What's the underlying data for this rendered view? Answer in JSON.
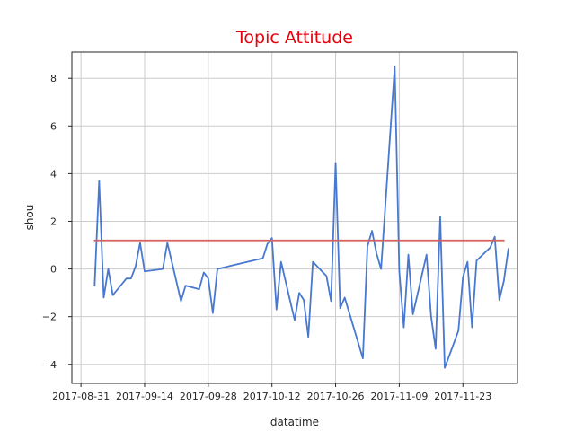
{
  "chart_data": {
    "type": "line",
    "title": "Topic Attitude",
    "title_color": "#e8000b",
    "xlabel": "datatime",
    "ylabel": "shou",
    "x_type": "date",
    "xlim": [
      "2017-08-29",
      "2017-12-05"
    ],
    "ylim": [
      -4.8,
      9.1
    ],
    "x_ticks": [
      "2017-08-31",
      "2017-09-14",
      "2017-09-28",
      "2017-10-12",
      "2017-10-26",
      "2017-11-09",
      "2017-11-23"
    ],
    "y_ticks": [
      -4,
      -2,
      0,
      2,
      4,
      6,
      8
    ],
    "y_tick_labels": [
      "−4",
      "−2",
      "0",
      "2",
      "4",
      "6",
      "8"
    ],
    "grid": true,
    "series": [
      {
        "color": "#4878cf",
        "points": [
          [
            "2017-09-03",
            -0.7
          ],
          [
            "2017-09-04",
            3.7
          ],
          [
            "2017-09-05",
            -1.2
          ],
          [
            "2017-09-06",
            0.0
          ],
          [
            "2017-09-07",
            -1.1
          ],
          [
            "2017-09-10",
            -0.4
          ],
          [
            "2017-09-11",
            -0.4
          ],
          [
            "2017-09-12",
            0.1
          ],
          [
            "2017-09-13",
            1.1
          ],
          [
            "2017-09-14",
            -0.1
          ],
          [
            "2017-09-18",
            0.0
          ],
          [
            "2017-09-19",
            1.1
          ],
          [
            "2017-09-22",
            -1.35
          ],
          [
            "2017-09-23",
            -0.7
          ],
          [
            "2017-09-26",
            -0.85
          ],
          [
            "2017-09-27",
            -0.15
          ],
          [
            "2017-09-28",
            -0.4
          ],
          [
            "2017-09-29",
            -1.85
          ],
          [
            "2017-09-30",
            0.0
          ],
          [
            "2017-10-10",
            0.45
          ],
          [
            "2017-10-11",
            1.05
          ],
          [
            "2017-10-12",
            1.3
          ],
          [
            "2017-10-13",
            -1.7
          ],
          [
            "2017-10-14",
            0.3
          ],
          [
            "2017-10-17",
            -2.15
          ],
          [
            "2017-10-18",
            -1.0
          ],
          [
            "2017-10-19",
            -1.3
          ],
          [
            "2017-10-20",
            -2.85
          ],
          [
            "2017-10-21",
            0.3
          ],
          [
            "2017-10-24",
            -0.3
          ],
          [
            "2017-10-25",
            -1.35
          ],
          [
            "2017-10-26",
            4.45
          ],
          [
            "2017-10-27",
            -1.65
          ],
          [
            "2017-10-28",
            -1.2
          ],
          [
            "2017-11-01",
            -3.75
          ],
          [
            "2017-11-02",
            0.95
          ],
          [
            "2017-11-03",
            1.6
          ],
          [
            "2017-11-04",
            0.65
          ],
          [
            "2017-11-05",
            0.0
          ],
          [
            "2017-11-08",
            8.5
          ],
          [
            "2017-11-09",
            -0.1
          ],
          [
            "2017-11-10",
            -2.45
          ],
          [
            "2017-11-11",
            0.6
          ],
          [
            "2017-11-12",
            -1.9
          ],
          [
            "2017-11-15",
            0.6
          ],
          [
            "2017-11-16",
            -2.0
          ],
          [
            "2017-11-17",
            -3.35
          ],
          [
            "2017-11-18",
            2.2
          ],
          [
            "2017-11-19",
            -4.15
          ],
          [
            "2017-11-22",
            -2.6
          ],
          [
            "2017-11-23",
            -0.35
          ],
          [
            "2017-11-24",
            0.3
          ],
          [
            "2017-11-25",
            -2.45
          ],
          [
            "2017-11-26",
            0.35
          ],
          [
            "2017-11-29",
            0.9
          ],
          [
            "2017-11-30",
            1.35
          ],
          [
            "2017-12-01",
            -1.3
          ],
          [
            "2017-12-02",
            -0.5
          ],
          [
            "2017-12-03",
            0.85
          ]
        ]
      },
      {
        "color": "#d65f5f",
        "points": [
          [
            "2017-09-03",
            1.2
          ],
          [
            "2017-12-02",
            1.2
          ]
        ]
      }
    ]
  }
}
